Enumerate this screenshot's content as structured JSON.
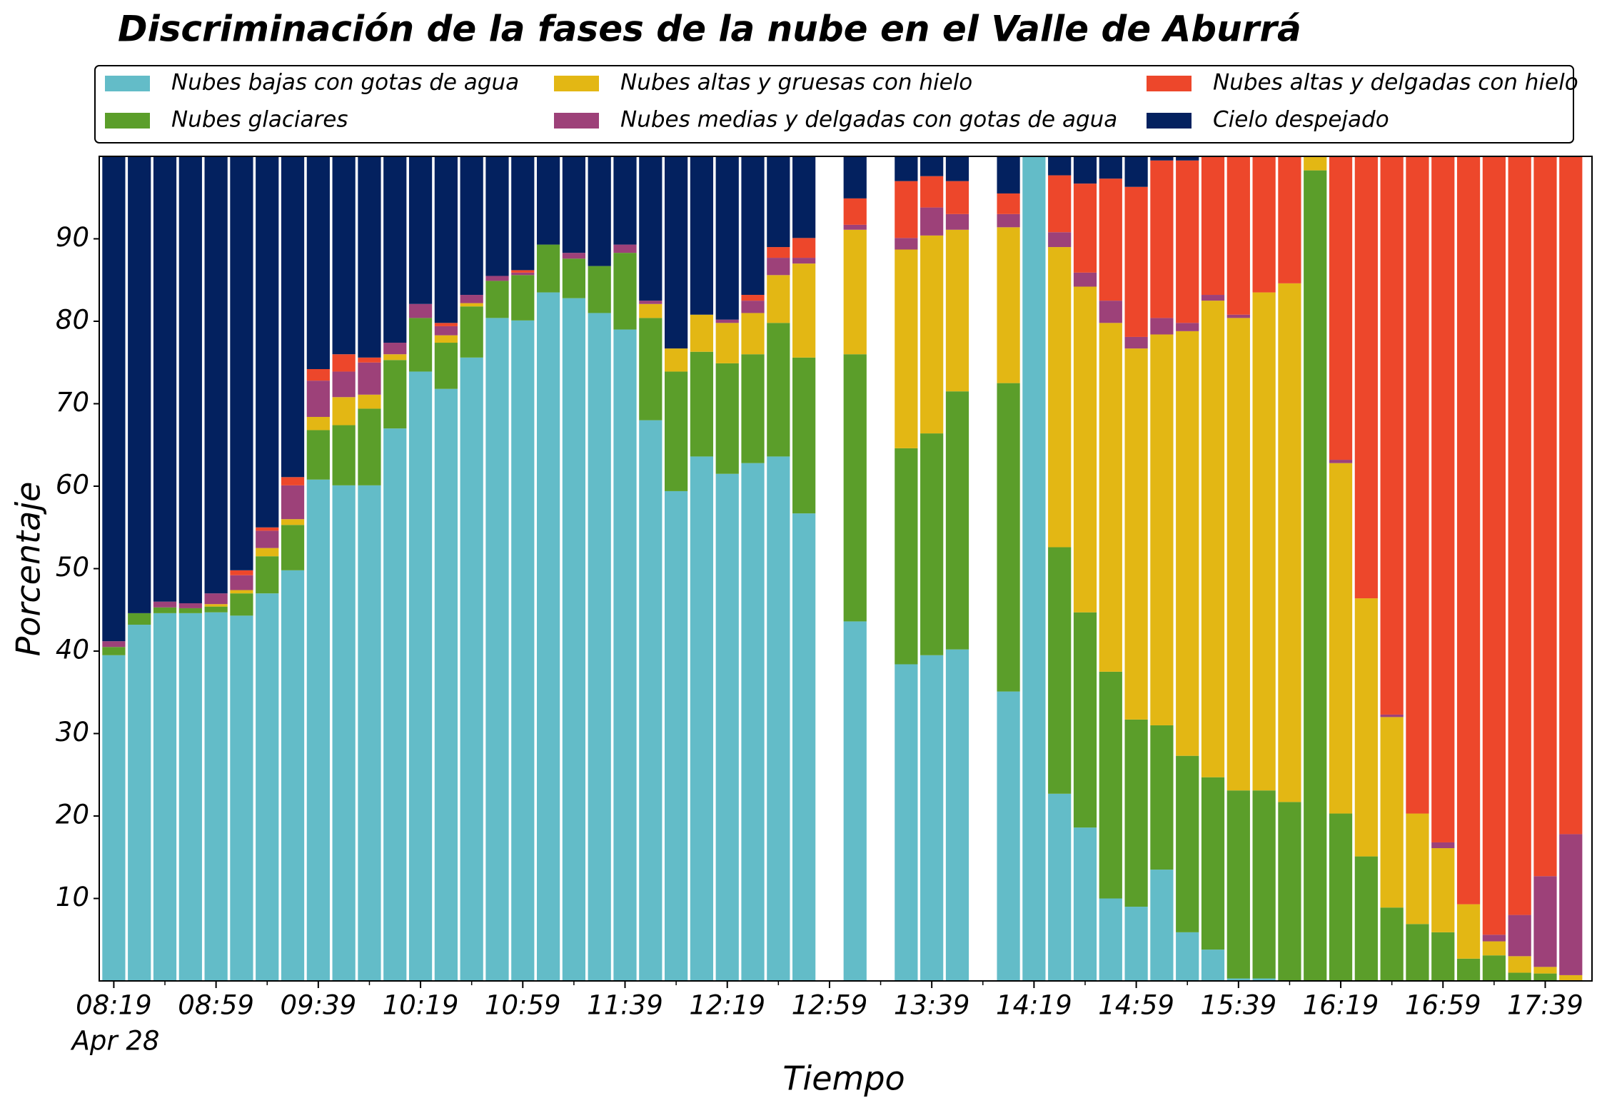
{
  "chart_data": {
    "type": "stacked_bar",
    "title": "Discriminación de la fases de la nube en el Valle de Aburrá",
    "x_label": "Tiempo",
    "y_label": "Porcentaje",
    "x_date_label": "Apr 28",
    "categories": [
      "08:19",
      null,
      null,
      null,
      "08:59",
      null,
      null,
      null,
      "09:39",
      null,
      null,
      null,
      "10:19",
      null,
      null,
      null,
      "10:59",
      null,
      null,
      null,
      "11:39",
      null,
      null,
      null,
      "12:19",
      null,
      null,
      null,
      "12:59",
      null,
      null,
      null,
      "13:39",
      null,
      null,
      null,
      "14:19",
      null,
      null,
      null,
      "14:59",
      null,
      null,
      null,
      "15:39",
      null,
      null,
      null,
      "16:19",
      null,
      null,
      null,
      "16:59",
      null,
      null,
      null,
      "17:39",
      null
    ],
    "ylim": [
      0,
      100
    ],
    "yticks": [
      10,
      20,
      30,
      40,
      50,
      60,
      70,
      80,
      90
    ],
    "series": [
      {
        "name": "Nubes bajas con gotas de agua",
        "color": "#63bcc8",
        "values": [
          39.5,
          43.2,
          44.6,
          44.6,
          44.7,
          44.3,
          47,
          49.8,
          60.8,
          60.1,
          60.1,
          67,
          73.9,
          71.8,
          75.6,
          80.4,
          80.1,
          83.5,
          82.8,
          81,
          79,
          68,
          59.4,
          63.6,
          61.5,
          62.8,
          63.6,
          56.7,
          null,
          43.6,
          null,
          38.4,
          39.5,
          40.2,
          null,
          35.1,
          100,
          22.7,
          18.6,
          10,
          9,
          13.5,
          5.9,
          3.8,
          0.3,
          0.3,
          0,
          0,
          0,
          0,
          0,
          0,
          0,
          0,
          0,
          0,
          0,
          0
        ]
      },
      {
        "name": "Nubes glaciares",
        "color": "#5b9e2a",
        "values": [
          1,
          1.4,
          0.7,
          0.6,
          0.7,
          2.7,
          4.5,
          5.5,
          6,
          7.3,
          9.3,
          8.3,
          6.5,
          5.6,
          6.2,
          4.5,
          5.5,
          5.8,
          4.8,
          5.7,
          9.3,
          12.4,
          14.5,
          12.7,
          13.4,
          13.2,
          16.2,
          18.9,
          null,
          32.4,
          null,
          26.2,
          26.9,
          31.3,
          null,
          37.4,
          0,
          29.9,
          26.1,
          27.5,
          22.7,
          17.5,
          21.4,
          20.9,
          22.8,
          22.8,
          21.7,
          98.3,
          20.3,
          15.1,
          8.9,
          6.9,
          5.9,
          2.7,
          3.1,
          1,
          0.9,
          0
        ]
      },
      {
        "name": "Nubes altas y gruesas con hielo",
        "color": "#e3b714",
        "values": [
          0,
          0,
          0,
          0,
          0.3,
          0.4,
          1,
          0.7,
          1.6,
          3.4,
          1.7,
          0.7,
          0,
          0.9,
          0.4,
          0,
          0,
          0,
          0,
          0,
          0,
          1.7,
          2.8,
          4.5,
          4.9,
          5,
          5.8,
          11.4,
          null,
          15.1,
          null,
          24.1,
          24,
          19.6,
          null,
          18.9,
          0,
          36.4,
          39.5,
          42.3,
          45,
          47.4,
          51.5,
          57.8,
          57.3,
          60.4,
          62.9,
          1.7,
          42.5,
          31.3,
          23.1,
          13.4,
          10.2,
          6.6,
          1.7,
          2,
          0.8,
          0.7
        ]
      },
      {
        "name": "Nubes medias y delgadas con gotas de agua",
        "color": "#9d4179",
        "values": [
          0.7,
          0,
          0.7,
          0.6,
          1.3,
          1.8,
          2.1,
          4.1,
          4.4,
          3.1,
          3.9,
          1.4,
          1.7,
          1.1,
          1,
          0.6,
          0.3,
          0,
          0.7,
          0,
          1,
          0.4,
          0,
          0,
          0.4,
          1.5,
          2.1,
          0.7,
          null,
          0.6,
          null,
          1.4,
          3.4,
          1.9,
          null,
          1.6,
          0,
          1.8,
          1.7,
          2.7,
          1.4,
          2,
          1,
          0.7,
          0.4,
          0,
          0,
          0,
          0.4,
          0,
          0.3,
          0,
          0.7,
          0,
          0.8,
          5,
          11,
          17.1
        ]
      },
      {
        "name": "Nubes altas y delgadas con hielo",
        "color": "#ed472b",
        "values": [
          0,
          0,
          0,
          0,
          0,
          0.6,
          0.4,
          1,
          1.4,
          2.1,
          0.6,
          0,
          0,
          0.4,
          0,
          0,
          0.3,
          0,
          0,
          0,
          0,
          0,
          0,
          0,
          0,
          0.7,
          1.3,
          2.4,
          null,
          3.2,
          null,
          6.9,
          3.8,
          4,
          null,
          2.5,
          0,
          6.9,
          10.8,
          14.8,
          18.2,
          19.1,
          19.7,
          16.8,
          19.2,
          16.5,
          15.4,
          0,
          36.8,
          53.6,
          67.7,
          79.7,
          83.2,
          90.7,
          94.4,
          92,
          87.3,
          82.2
        ]
      },
      {
        "name": "Cielo despejado",
        "color": "#03215f",
        "values": [
          58.8,
          55.4,
          54,
          54.2,
          53,
          50.2,
          45,
          38.9,
          25.8,
          24,
          24.4,
          22.6,
          17.9,
          20.2,
          16.8,
          14.5,
          13.8,
          10.7,
          11.7,
          13.3,
          10.7,
          17.5,
          23.3,
          19.2,
          19.8,
          16.8,
          11,
          9.9,
          null,
          5.1,
          null,
          3,
          2.4,
          3,
          null,
          4.5,
          0,
          2.3,
          3.3,
          2.7,
          3.7,
          0.5,
          0.5,
          0,
          0,
          0,
          0,
          0,
          0,
          0,
          0,
          0,
          0,
          0,
          0,
          0,
          0,
          0
        ]
      }
    ]
  }
}
